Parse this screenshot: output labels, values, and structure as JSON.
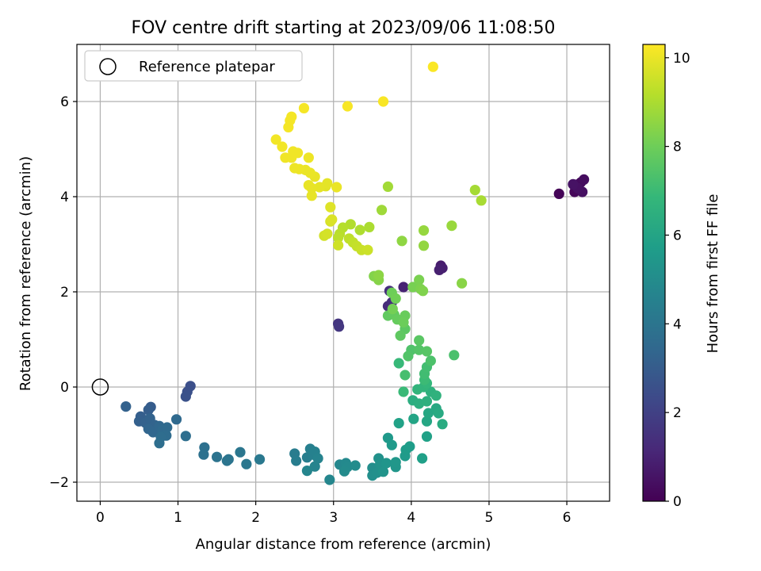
{
  "chart_data": {
    "type": "scatter",
    "title": "FOV centre drift starting at 2023/09/06 11:08:50",
    "xlabel": "Angular distance from reference (arcmin)",
    "ylabel": "Rotation from reference (arcmin)",
    "xlim": [
      -0.3,
      6.55
    ],
    "ylim": [
      -2.4,
      7.2
    ],
    "xticks": [
      0,
      1,
      2,
      3,
      4,
      5,
      6
    ],
    "xtick_labels": [
      "0",
      "1",
      "2",
      "3",
      "4",
      "5",
      "6"
    ],
    "yticks": [
      -2,
      0,
      2,
      4,
      6
    ],
    "ytick_labels": [
      "−2",
      "0",
      "2",
      "4",
      "6"
    ],
    "grid": true,
    "legend": {
      "placement": "top-left",
      "entries": [
        {
          "label": "Reference platepar",
          "marker": "open-circle"
        }
      ]
    },
    "reference_point": {
      "x": 0,
      "y": 0
    },
    "colorbar": {
      "label": "Hours from first FF file",
      "range": [
        0,
        10.3
      ],
      "ticks": [
        0,
        2,
        4,
        6,
        8,
        10
      ],
      "tick_labels": [
        "0",
        "2",
        "4",
        "6",
        "8",
        "10"
      ],
      "colormap": "viridis",
      "colors": [
        "#440154",
        "#482878",
        "#3e4989",
        "#31688e",
        "#26828e",
        "#1f9e89",
        "#35b779",
        "#6ece58",
        "#b5de2b",
        "#fde725"
      ]
    },
    "points": [
      {
        "x": 5.9,
        "y": 4.06,
        "h": 0.1
      },
      {
        "x": 6.1,
        "y": 4.1,
        "h": 0.15
      },
      {
        "x": 6.12,
        "y": 4.25,
        "h": 0.2
      },
      {
        "x": 6.15,
        "y": 4.22,
        "h": 0.25
      },
      {
        "x": 6.18,
        "y": 4.3,
        "h": 0.3
      },
      {
        "x": 6.22,
        "y": 4.36,
        "h": 0.35
      },
      {
        "x": 6.2,
        "y": 4.1,
        "h": 0.4
      },
      {
        "x": 6.14,
        "y": 4.18,
        "h": 0.45
      },
      {
        "x": 6.08,
        "y": 4.26,
        "h": 0.5
      },
      {
        "x": 4.38,
        "y": 2.55,
        "h": 0.8
      },
      {
        "x": 4.4,
        "y": 2.5,
        "h": 0.85
      },
      {
        "x": 4.36,
        "y": 2.46,
        "h": 0.9
      },
      {
        "x": 3.9,
        "y": 2.1,
        "h": 1.0
      },
      {
        "x": 3.7,
        "y": 1.7,
        "h": 1.3
      },
      {
        "x": 3.75,
        "y": 1.78,
        "h": 1.35
      },
      {
        "x": 3.72,
        "y": 2.02,
        "h": 1.4
      },
      {
        "x": 3.06,
        "y": 1.33,
        "h": 1.6
      },
      {
        "x": 3.07,
        "y": 1.27,
        "h": 1.65
      },
      {
        "x": 1.16,
        "y": 0.02,
        "h": 2.5
      },
      {
        "x": 1.12,
        "y": -0.1,
        "h": 2.55
      },
      {
        "x": 1.1,
        "y": -0.2,
        "h": 2.6
      },
      {
        "x": 0.65,
        "y": -0.42,
        "h": 3.0
      },
      {
        "x": 0.62,
        "y": -0.48,
        "h": 3.05
      },
      {
        "x": 0.52,
        "y": -0.62,
        "h": 3.1
      },
      {
        "x": 0.5,
        "y": -0.72,
        "h": 3.15
      },
      {
        "x": 0.58,
        "y": -0.75,
        "h": 3.2
      },
      {
        "x": 0.64,
        "y": -0.66,
        "h": 3.25
      },
      {
        "x": 0.7,
        "y": -0.8,
        "h": 3.3
      },
      {
        "x": 0.62,
        "y": -0.88,
        "h": 3.35
      },
      {
        "x": 0.68,
        "y": -0.95,
        "h": 3.4
      },
      {
        "x": 0.76,
        "y": -0.82,
        "h": 3.45
      },
      {
        "x": 0.8,
        "y": -0.9,
        "h": 3.5
      },
      {
        "x": 0.86,
        "y": -0.85,
        "h": 3.55
      },
      {
        "x": 0.85,
        "y": -1.02,
        "h": 3.6
      },
      {
        "x": 0.78,
        "y": -1.05,
        "h": 3.65
      },
      {
        "x": 0.76,
        "y": -1.18,
        "h": 3.7
      },
      {
        "x": 0.33,
        "y": -0.41,
        "h": 3.2
      },
      {
        "x": 0.98,
        "y": -0.68,
        "h": 3.5
      },
      {
        "x": 1.1,
        "y": -1.03,
        "h": 3.7
      },
      {
        "x": 1.34,
        "y": -1.27,
        "h": 3.8
      },
      {
        "x": 1.33,
        "y": -1.42,
        "h": 3.85
      },
      {
        "x": 1.5,
        "y": -1.47,
        "h": 3.9
      },
      {
        "x": 1.65,
        "y": -1.52,
        "h": 3.95
      },
      {
        "x": 1.63,
        "y": -1.55,
        "h": 4.0
      },
      {
        "x": 1.8,
        "y": -1.37,
        "h": 4.05
      },
      {
        "x": 1.88,
        "y": -1.62,
        "h": 4.1
      },
      {
        "x": 2.05,
        "y": -1.52,
        "h": 4.15
      },
      {
        "x": 2.5,
        "y": -1.4,
        "h": 4.3
      },
      {
        "x": 2.52,
        "y": -1.55,
        "h": 4.35
      },
      {
        "x": 2.66,
        "y": -1.48,
        "h": 4.4
      },
      {
        "x": 2.7,
        "y": -1.3,
        "h": 4.45
      },
      {
        "x": 2.74,
        "y": -1.42,
        "h": 4.5
      },
      {
        "x": 2.76,
        "y": -1.36,
        "h": 4.55
      },
      {
        "x": 2.8,
        "y": -1.5,
        "h": 4.6
      },
      {
        "x": 2.76,
        "y": -1.67,
        "h": 4.65
      },
      {
        "x": 2.66,
        "y": -1.76,
        "h": 4.7
      },
      {
        "x": 2.95,
        "y": -1.95,
        "h": 4.75
      },
      {
        "x": 3.08,
        "y": -1.63,
        "h": 4.8
      },
      {
        "x": 3.16,
        "y": -1.6,
        "h": 4.85
      },
      {
        "x": 3.18,
        "y": -1.68,
        "h": 4.9
      },
      {
        "x": 3.14,
        "y": -1.77,
        "h": 4.95
      },
      {
        "x": 3.28,
        "y": -1.65,
        "h": 5.0
      },
      {
        "x": 3.5,
        "y": -1.7,
        "h": 5.05
      },
      {
        "x": 3.5,
        "y": -1.86,
        "h": 5.1
      },
      {
        "x": 3.56,
        "y": -1.8,
        "h": 5.15
      },
      {
        "x": 3.58,
        "y": -1.5,
        "h": 5.2
      },
      {
        "x": 3.6,
        "y": -1.62,
        "h": 5.25
      },
      {
        "x": 3.64,
        "y": -1.78,
        "h": 5.3
      },
      {
        "x": 3.68,
        "y": -1.6,
        "h": 5.35
      },
      {
        "x": 3.8,
        "y": -1.68,
        "h": 5.4
      },
      {
        "x": 3.8,
        "y": -1.58,
        "h": 5.45
      },
      {
        "x": 3.7,
        "y": -1.07,
        "h": 5.5
      },
      {
        "x": 3.75,
        "y": -1.22,
        "h": 5.55
      },
      {
        "x": 3.92,
        "y": -1.45,
        "h": 5.6
      },
      {
        "x": 3.93,
        "y": -1.32,
        "h": 5.65
      },
      {
        "x": 3.98,
        "y": -1.25,
        "h": 5.7
      },
      {
        "x": 4.14,
        "y": -1.5,
        "h": 5.8
      },
      {
        "x": 4.2,
        "y": -1.04,
        "h": 5.85
      },
      {
        "x": 3.84,
        "y": -0.76,
        "h": 5.9
      },
      {
        "x": 4.03,
        "y": -0.67,
        "h": 6.0
      },
      {
        "x": 4.2,
        "y": -0.72,
        "h": 6.1
      },
      {
        "x": 4.22,
        "y": -0.55,
        "h": 6.15
      },
      {
        "x": 4.32,
        "y": -0.45,
        "h": 6.2
      },
      {
        "x": 4.35,
        "y": -0.55,
        "h": 6.25
      },
      {
        "x": 4.4,
        "y": -0.78,
        "h": 6.3
      },
      {
        "x": 4.02,
        "y": -0.28,
        "h": 6.4
      },
      {
        "x": 4.1,
        "y": -0.35,
        "h": 6.45
      },
      {
        "x": 4.2,
        "y": -0.3,
        "h": 6.5
      },
      {
        "x": 4.25,
        "y": -0.1,
        "h": 6.55
      },
      {
        "x": 4.32,
        "y": -0.18,
        "h": 6.6
      },
      {
        "x": 4.08,
        "y": -0.05,
        "h": 6.7
      },
      {
        "x": 4.16,
        "y": 0.0,
        "h": 6.75
      },
      {
        "x": 4.2,
        "y": 0.08,
        "h": 6.8
      },
      {
        "x": 3.84,
        "y": 0.5,
        "h": 6.9
      },
      {
        "x": 3.9,
        "y": -0.1,
        "h": 6.95
      },
      {
        "x": 4.17,
        "y": 0.15,
        "h": 7.0
      },
      {
        "x": 4.17,
        "y": 0.28,
        "h": 7.1
      },
      {
        "x": 4.2,
        "y": 0.42,
        "h": 7.15
      },
      {
        "x": 3.92,
        "y": 0.25,
        "h": 7.2
      },
      {
        "x": 4.55,
        "y": 0.67,
        "h": 7.3
      },
      {
        "x": 4.25,
        "y": 0.55,
        "h": 7.35
      },
      {
        "x": 4.0,
        "y": 0.78,
        "h": 7.4
      },
      {
        "x": 3.96,
        "y": 0.65,
        "h": 7.45
      },
      {
        "x": 4.1,
        "y": 0.78,
        "h": 7.5
      },
      {
        "x": 4.2,
        "y": 0.75,
        "h": 7.55
      },
      {
        "x": 4.1,
        "y": 0.98,
        "h": 7.6
      },
      {
        "x": 3.92,
        "y": 1.22,
        "h": 7.65
      },
      {
        "x": 3.86,
        "y": 1.08,
        "h": 7.7
      },
      {
        "x": 3.7,
        "y": 1.5,
        "h": 7.75
      },
      {
        "x": 3.78,
        "y": 1.52,
        "h": 7.8
      },
      {
        "x": 3.82,
        "y": 1.42,
        "h": 7.85
      },
      {
        "x": 3.92,
        "y": 1.5,
        "h": 7.9
      },
      {
        "x": 3.9,
        "y": 1.36,
        "h": 7.95
      },
      {
        "x": 3.75,
        "y": 1.98,
        "h": 8.0
      },
      {
        "x": 3.8,
        "y": 1.86,
        "h": 8.05
      },
      {
        "x": 3.76,
        "y": 1.64,
        "h": 8.1
      },
      {
        "x": 4.02,
        "y": 2.1,
        "h": 8.15
      },
      {
        "x": 4.1,
        "y": 2.25,
        "h": 8.2
      },
      {
        "x": 4.12,
        "y": 2.06,
        "h": 8.25
      },
      {
        "x": 4.15,
        "y": 2.02,
        "h": 8.3
      },
      {
        "x": 3.52,
        "y": 2.33,
        "h": 8.35
      },
      {
        "x": 3.58,
        "y": 2.25,
        "h": 8.4
      },
      {
        "x": 4.65,
        "y": 2.18,
        "h": 8.45
      },
      {
        "x": 3.58,
        "y": 2.35,
        "h": 8.5
      },
      {
        "x": 3.88,
        "y": 3.07,
        "h": 8.55
      },
      {
        "x": 4.16,
        "y": 2.97,
        "h": 8.6
      },
      {
        "x": 4.16,
        "y": 3.29,
        "h": 8.65
      },
      {
        "x": 4.52,
        "y": 3.39,
        "h": 8.7
      },
      {
        "x": 3.62,
        "y": 3.72,
        "h": 8.8
      },
      {
        "x": 3.7,
        "y": 4.21,
        "h": 8.85
      },
      {
        "x": 4.82,
        "y": 4.14,
        "h": 8.9
      },
      {
        "x": 4.9,
        "y": 3.92,
        "h": 8.95
      },
      {
        "x": 3.46,
        "y": 3.36,
        "h": 9.0
      },
      {
        "x": 3.34,
        "y": 3.3,
        "h": 9.05
      },
      {
        "x": 3.22,
        "y": 3.42,
        "h": 9.1
      },
      {
        "x": 3.12,
        "y": 3.35,
        "h": 9.15
      },
      {
        "x": 3.08,
        "y": 3.22,
        "h": 9.2
      },
      {
        "x": 3.06,
        "y": 3.14,
        "h": 9.25
      },
      {
        "x": 3.2,
        "y": 3.12,
        "h": 9.3
      },
      {
        "x": 3.25,
        "y": 3.04,
        "h": 9.35
      },
      {
        "x": 3.3,
        "y": 2.96,
        "h": 9.4
      },
      {
        "x": 3.36,
        "y": 2.88,
        "h": 9.45
      },
      {
        "x": 3.44,
        "y": 2.88,
        "h": 9.5
      },
      {
        "x": 3.06,
        "y": 2.98,
        "h": 9.55
      },
      {
        "x": 2.88,
        "y": 3.18,
        "h": 9.6
      },
      {
        "x": 2.92,
        "y": 3.22,
        "h": 9.65
      },
      {
        "x": 2.96,
        "y": 3.48,
        "h": 9.7
      },
      {
        "x": 2.98,
        "y": 3.52,
        "h": 9.75
      },
      {
        "x": 2.96,
        "y": 3.78,
        "h": 9.8
      },
      {
        "x": 2.9,
        "y": 4.22,
        "h": 9.85
      },
      {
        "x": 2.92,
        "y": 4.28,
        "h": 9.9
      },
      {
        "x": 2.82,
        "y": 4.2,
        "h": 9.92
      },
      {
        "x": 2.72,
        "y": 4.18,
        "h": 9.95
      },
      {
        "x": 2.68,
        "y": 4.24,
        "h": 9.97
      },
      {
        "x": 3.04,
        "y": 4.2,
        "h": 10.0
      },
      {
        "x": 2.72,
        "y": 4.02,
        "h": 9.95
      },
      {
        "x": 2.76,
        "y": 4.42,
        "h": 9.98
      },
      {
        "x": 2.7,
        "y": 4.5,
        "h": 10.0
      },
      {
        "x": 2.64,
        "y": 4.56,
        "h": 10.0
      },
      {
        "x": 2.56,
        "y": 4.58,
        "h": 10.05
      },
      {
        "x": 2.5,
        "y": 4.6,
        "h": 10.05
      },
      {
        "x": 2.68,
        "y": 4.82,
        "h": 10.05
      },
      {
        "x": 2.54,
        "y": 4.92,
        "h": 10.1
      },
      {
        "x": 2.48,
        "y": 4.95,
        "h": 10.1
      },
      {
        "x": 2.38,
        "y": 4.82,
        "h": 10.1
      },
      {
        "x": 2.46,
        "y": 4.82,
        "h": 10.1
      },
      {
        "x": 2.34,
        "y": 5.05,
        "h": 10.12
      },
      {
        "x": 2.26,
        "y": 5.2,
        "h": 10.12
      },
      {
        "x": 2.42,
        "y": 5.46,
        "h": 10.15
      },
      {
        "x": 2.44,
        "y": 5.6,
        "h": 10.15
      },
      {
        "x": 2.46,
        "y": 5.68,
        "h": 10.15
      },
      {
        "x": 2.62,
        "y": 5.86,
        "h": 10.18
      },
      {
        "x": 3.18,
        "y": 5.9,
        "h": 10.2
      },
      {
        "x": 3.64,
        "y": 6.0,
        "h": 10.22
      },
      {
        "x": 4.28,
        "y": 6.73,
        "h": 10.25
      }
    ]
  }
}
